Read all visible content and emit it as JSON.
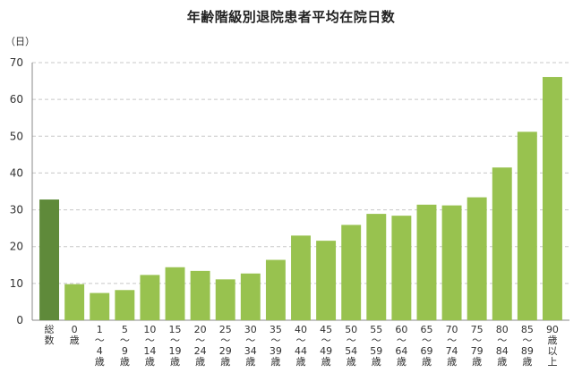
{
  "chart_data": {
    "type": "bar",
    "title": "年齢階級別退院患者平均在院日数",
    "ylabel": "（日）",
    "ylim": [
      0,
      70
    ],
    "yticks": [
      0,
      10,
      20,
      30,
      40,
      50,
      60,
      70
    ],
    "grid": true,
    "categories": [
      [
        "総",
        "数"
      ],
      [
        "0",
        "歳"
      ],
      [
        "1",
        "〜",
        "4",
        "歳"
      ],
      [
        "5",
        "〜",
        "9",
        "歳"
      ],
      [
        "10",
        "〜",
        "14",
        "歳"
      ],
      [
        "15",
        "〜",
        "19",
        "歳"
      ],
      [
        "20",
        "〜",
        "24",
        "歳"
      ],
      [
        "25",
        "〜",
        "29",
        "歳"
      ],
      [
        "30",
        "〜",
        "34",
        "歳"
      ],
      [
        "35",
        "〜",
        "39",
        "歳"
      ],
      [
        "40",
        "〜",
        "44",
        "歳"
      ],
      [
        "45",
        "〜",
        "49",
        "歳"
      ],
      [
        "50",
        "〜",
        "54",
        "歳"
      ],
      [
        "55",
        "〜",
        "59",
        "歳"
      ],
      [
        "60",
        "〜",
        "64",
        "歳"
      ],
      [
        "65",
        "〜",
        "69",
        "歳"
      ],
      [
        "70",
        "〜",
        "74",
        "歳"
      ],
      [
        "75",
        "〜",
        "79",
        "歳"
      ],
      [
        "80",
        "〜",
        "84",
        "歳"
      ],
      [
        "85",
        "〜",
        "89",
        "歳"
      ],
      [
        "90",
        "歳",
        "以",
        "上"
      ]
    ],
    "values": [
      32.8,
      9.8,
      7.4,
      8.2,
      12.3,
      14.4,
      13.4,
      11.1,
      12.7,
      16.4,
      23.0,
      21.6,
      25.9,
      28.9,
      28.4,
      31.4,
      31.2,
      33.4,
      41.5,
      51.2,
      66.1
    ],
    "colors": {
      "total": "#5f8a3a",
      "bar": "#98c24f",
      "grid": "#c8c8c8",
      "axis": "#888888"
    }
  }
}
